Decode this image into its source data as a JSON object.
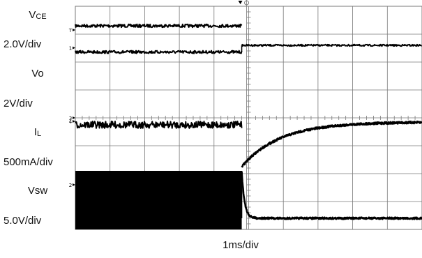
{
  "chart_data": {
    "type": "line",
    "title": "",
    "xlabel": "1ms/div",
    "ylabel": "",
    "grid": true,
    "grid_divisions": {
      "horizontal": 10,
      "vertical": 8
    },
    "x_unit": "div",
    "xlim": [
      0,
      10
    ],
    "y_unit": "div",
    "ylim": [
      0,
      8
    ],
    "event_time_div": 4.8,
    "channel_markers": [
      "T",
      "1",
      "3",
      "4",
      "2"
    ],
    "series": [
      {
        "name": "VCE",
        "scale": "2.0V/div",
        "points": [
          [
            0,
            7.3
          ],
          [
            4.8,
            7.3
          ]
        ]
      },
      {
        "name": "Vo",
        "scale": "2V/div",
        "points": [
          [
            0,
            6.36
          ],
          [
            4.8,
            6.36
          ],
          [
            4.8,
            6.6
          ],
          [
            10,
            6.6
          ]
        ],
        "ground_marker_y": 4.0
      },
      {
        "name": "IL",
        "scale": "500mA/div",
        "points": [
          [
            0,
            3.75
          ],
          [
            4.8,
            3.75
          ]
        ],
        "recovery": {
          "start_y": 2.25,
          "end_y": 3.85,
          "time_constant_div": 1.1
        }
      },
      {
        "name": "Vsw",
        "scale": "5.0V/div",
        "switching_band": [
          0.0,
          2.1
        ],
        "points": [
          [
            4.8,
            2.1
          ],
          [
            10,
            0.4
          ]
        ]
      }
    ]
  },
  "labels": {
    "vce_name_main": "V",
    "vce_name_sub": "CE",
    "vce_scale": "2.0V/div",
    "vo_name": "Vo",
    "vo_scale": "2V/div",
    "il_name_main": "I",
    "il_name_sub": "L",
    "il_scale": "500mA/div",
    "vsw_name": "Vsw",
    "vsw_scale": "5.0V/div",
    "x_scale": "1ms/div"
  },
  "colors": {
    "trace": "#000000",
    "grid": "#7a7a7a",
    "background": "#ffffff"
  }
}
